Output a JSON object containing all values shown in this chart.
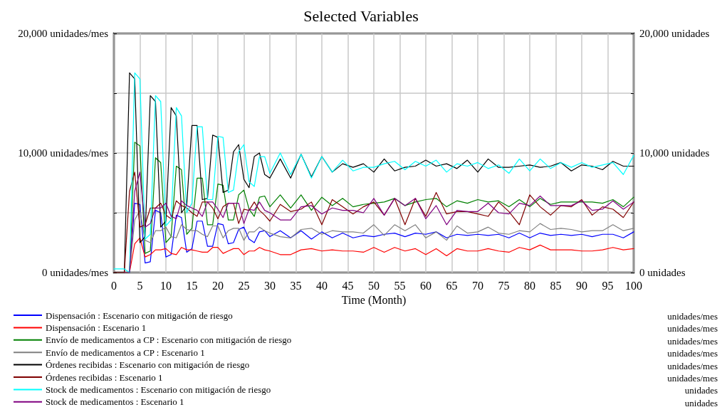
{
  "chart_data": {
    "type": "line",
    "title": "Selected Variables",
    "xlabel": "Time (Month)",
    "annotations": [
      "unidades/mes",
      "unidades"
    ],
    "x": [
      0,
      1,
      2,
      3,
      4,
      5,
      6,
      7,
      8,
      9,
      10,
      11,
      12,
      13,
      14,
      15,
      16,
      17,
      18,
      19,
      20,
      21,
      22,
      23,
      24,
      25,
      26,
      27,
      28,
      29,
      30,
      32,
      34,
      36,
      38,
      40,
      42,
      44,
      46,
      48,
      50,
      52,
      54,
      56,
      58,
      60,
      62,
      64,
      66,
      68,
      70,
      72,
      74,
      76,
      78,
      80,
      82,
      84,
      86,
      88,
      90,
      92,
      94,
      96,
      98,
      100
    ],
    "xlim": [
      0,
      100
    ],
    "xticks": [
      0,
      5,
      10,
      15,
      20,
      25,
      30,
      35,
      40,
      45,
      50,
      55,
      60,
      65,
      70,
      75,
      80,
      85,
      90,
      95,
      100
    ],
    "ylim": [
      0,
      20000
    ],
    "yticks": [
      {
        "value": 0,
        "label": "0 unidades/mes"
      },
      {
        "value": 5000,
        "label": null
      },
      {
        "value": 10000,
        "label": "10,000 unidades/mes"
      },
      {
        "value": 15000,
        "label": null
      },
      {
        "value": 20000,
        "label": "20,000 unidades/mes"
      }
    ],
    "y2lim": [
      0,
      20000
    ],
    "y2ticks": [
      {
        "value": 0,
        "label": "0 unidades"
      },
      {
        "value": 5000,
        "label": null
      },
      {
        "value": 10000,
        "label": "10,000 unidades"
      },
      {
        "value": 15000,
        "label": null
      },
      {
        "value": 20000,
        "label": "20,000 unidades"
      }
    ],
    "grid": true,
    "legend": "bottom",
    "marker": "none",
    "series": [
      {
        "name": "Dispensación : Escenario con mitigación de riesgo",
        "color": "#0000ff",
        "values": [
          null,
          null,
          null,
          0,
          5800,
          5700,
          800,
          900,
          5200,
          5000,
          1300,
          1500,
          4800,
          4600,
          1700,
          2000,
          4300,
          4300,
          2200,
          2200,
          4100,
          4000,
          2400,
          2500,
          3600,
          3800,
          2800,
          2500,
          3400,
          3500,
          3000,
          3500,
          2900,
          3500,
          2800,
          3400,
          2900,
          3300,
          2900,
          3100,
          3000,
          3200,
          3300,
          3000,
          3300,
          3200,
          3400,
          2900,
          3200,
          3100,
          3200,
          3100,
          3200,
          2900,
          3300,
          2900,
          3300,
          3100,
          3200,
          3100,
          3200,
          3000,
          3200,
          3200,
          2900,
          3400
        ]
      },
      {
        "name": "Dispensación : Escenario 1",
        "color": "#ff0000",
        "values": [
          null,
          null,
          0,
          0,
          2400,
          2900,
          1300,
          1500,
          1900,
          1900,
          2000,
          1600,
          1500,
          2100,
          1900,
          1900,
          1800,
          1700,
          1700,
          2100,
          2100,
          1600,
          1800,
          2000,
          2000,
          1500,
          1800,
          1800,
          2100,
          1900,
          1800,
          1500,
          1500,
          1900,
          2000,
          1800,
          1900,
          1800,
          1800,
          1700,
          2100,
          1700,
          2100,
          1800,
          2000,
          1500,
          2000,
          1400,
          2000,
          1800,
          1800,
          2000,
          1800,
          1700,
          2100,
          1900,
          2300,
          1900,
          1900,
          1900,
          1800,
          1800,
          1900,
          2100,
          1900,
          2000
        ]
      },
      {
        "name": "Envío de medicamentos a CP : Escenario con mitigación de riesgo",
        "color": "#008000",
        "values": [
          null,
          null,
          0,
          0,
          10900,
          10600,
          1600,
          1800,
          9600,
          9200,
          2500,
          3000,
          8900,
          8600,
          3200,
          3700,
          7900,
          7900,
          4000,
          4000,
          7400,
          7300,
          4400,
          4400,
          6500,
          6900,
          5300,
          4700,
          6300,
          6400,
          5500,
          6500,
          5400,
          6500,
          5200,
          6300,
          5600,
          6200,
          5500,
          5700,
          5800,
          5900,
          6200,
          5600,
          5900,
          6100,
          6200,
          5500,
          6000,
          5800,
          6100,
          5900,
          6000,
          5500,
          6100,
          5500,
          6200,
          5700,
          5900,
          5900,
          5900,
          5900,
          5800,
          6100,
          5500,
          6300
        ]
      },
      {
        "name": "Envío de medicamentos a CP : Escenario 1",
        "color": "#808080",
        "values": [
          0,
          0,
          0,
          0,
          4400,
          5200,
          2700,
          2500,
          3500,
          3500,
          3800,
          3000,
          2900,
          4000,
          3600,
          3500,
          3500,
          3200,
          3000,
          3900,
          3900,
          2900,
          3500,
          3700,
          3700,
          2700,
          3400,
          3400,
          3800,
          3500,
          3300,
          3000,
          2900,
          3600,
          3700,
          3200,
          3500,
          3400,
          3400,
          3300,
          4000,
          3100,
          4000,
          3500,
          4000,
          2900,
          3400,
          2700,
          3900,
          3300,
          3400,
          3800,
          3300,
          3200,
          3500,
          3400,
          4100,
          3600,
          3700,
          3600,
          3400,
          3500,
          3500,
          4000,
          3500,
          3700
        ]
      },
      {
        "name": "Órdenes recibidas : Escenario con mitigación de riesgo",
        "color": "#000000",
        "values": [
          0,
          0,
          0,
          16700,
          16200,
          2500,
          3000,
          14800,
          14300,
          3800,
          4300,
          13800,
          13100,
          5000,
          5600,
          12300,
          12300,
          6100,
          6200,
          11500,
          11300,
          6700,
          6900,
          10100,
          10700,
          7800,
          7100,
          9700,
          10000,
          8200,
          7900,
          9500,
          7900,
          9900,
          8000,
          9700,
          8400,
          9100,
          8800,
          9100,
          8400,
          9500,
          8500,
          8800,
          8900,
          9400,
          8900,
          9100,
          8700,
          9400,
          8400,
          9500,
          8800,
          8800,
          8900,
          9000,
          8800,
          8900,
          9200,
          8500,
          9000,
          8900,
          8600,
          9300,
          8900,
          8900
        ]
      },
      {
        "name": "Órdenes recibidas : Escenario 1",
        "color": "#800000",
        "values": [
          0,
          0,
          0,
          6800,
          8400,
          3800,
          4000,
          5400,
          5400,
          5800,
          4800,
          4500,
          6000,
          5600,
          5400,
          5000,
          4700,
          5900,
          5900,
          5400,
          4500,
          5500,
          5800,
          5800,
          4100,
          5300,
          5200,
          5900,
          5200,
          4800,
          4300,
          5700,
          5100,
          5300,
          5900,
          4000,
          6100,
          5500,
          4900,
          5500,
          5900,
          4800,
          6200,
          4000,
          6200,
          4700,
          6700,
          4900,
          5100,
          5100,
          4900,
          4700,
          5900,
          5100,
          4000,
          6500,
          5500,
          4800,
          5600,
          5500,
          6100,
          4800,
          5500,
          5300,
          4600,
          5900
        ]
      },
      {
        "name": "Stock de medicamentos : Escenario con mitigación de riesgo",
        "color": "#00ffff",
        "axis": "y2",
        "values": [
          300,
          300,
          300,
          0,
          16700,
          16200,
          2800,
          3200,
          14800,
          14300,
          3900,
          4400,
          13800,
          13100,
          5000,
          5800,
          12200,
          12200,
          6100,
          6100,
          11400,
          11300,
          6700,
          6900,
          10100,
          10700,
          7600,
          7200,
          9700,
          9700,
          8300,
          10000,
          8200,
          9900,
          7900,
          9700,
          8400,
          9400,
          8500,
          8800,
          8800,
          9100,
          9300,
          8600,
          9300,
          8900,
          9400,
          8400,
          9100,
          8900,
          9200,
          8700,
          9000,
          8300,
          9500,
          8500,
          9500,
          8700,
          9200,
          8800,
          9200,
          8800,
          9000,
          9200,
          8200,
          9800
        ]
      },
      {
        "name": "Stock de medicamentos : Escenario 1",
        "color": "#800080",
        "axis": "y2",
        "values": [
          null,
          null,
          0,
          0,
          6800,
          8400,
          3800,
          4100,
          5400,
          5400,
          5800,
          4700,
          4500,
          6000,
          5600,
          5400,
          5200,
          4700,
          5900,
          5900,
          5300,
          4600,
          5800,
          5800,
          5800,
          4100,
          5300,
          5200,
          5900,
          5200,
          5000,
          4400,
          4400,
          5500,
          5600,
          4900,
          5400,
          5200,
          5200,
          5000,
          6200,
          4800,
          6200,
          5600,
          6200,
          4500,
          5600,
          4000,
          5200,
          5100,
          5100,
          5800,
          5000,
          4900,
          5800,
          5600,
          6400,
          5600,
          5600,
          5600,
          6000,
          5200,
          5300,
          6000,
          5300,
          5900
        ]
      }
    ]
  }
}
